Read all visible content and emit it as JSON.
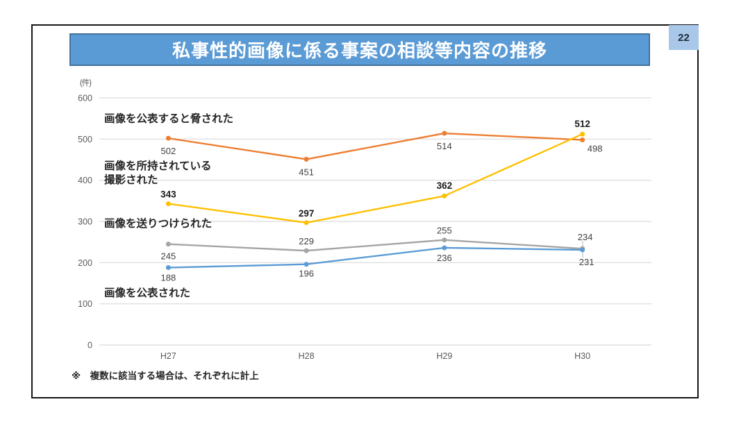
{
  "title": "私事性的画像に係る事案の相談等内容の推移",
  "page": {
    "number": "22"
  },
  "footnote": "※　複数に該当する場合は、それぞれに計上",
  "colors": {
    "title_bar": "#5B9BD5",
    "title_bar_border": "#41719C",
    "page_box": "#A9C7E8",
    "grid": "#D9D9D9",
    "tick_text": "#595959"
  },
  "chart_data": {
    "type": "line",
    "title": "私事性的画像に係る事案の相談等内容の推移",
    "ylabel_unit": "(件)",
    "categories": [
      "H27",
      "H28",
      "H29",
      "H30"
    ],
    "ylim": [
      0,
      600
    ],
    "ytick_step": 100,
    "grid": true,
    "legend": "inline-annotations",
    "series": [
      {
        "name": "画像を公表すると脅された",
        "color": "#ED7D31",
        "values": [
          502,
          451,
          514,
          498
        ],
        "bold_labels": false,
        "label_offsets": [
          [
            0,
            23
          ],
          [
            0,
            23
          ],
          [
            0,
            23
          ],
          [
            18,
            17
          ]
        ]
      },
      {
        "name": "画像を所持されている・撮影された",
        "color": "#FFC000",
        "values": [
          343,
          297,
          362,
          512
        ],
        "bold_labels": true,
        "label_offsets": [
          [
            0,
            -9
          ],
          [
            0,
            -9
          ],
          [
            0,
            -10
          ],
          [
            0,
            -10
          ]
        ]
      },
      {
        "name": "画像を送りつけられた",
        "color": "#A5A5A5",
        "values": [
          245,
          229,
          255,
          234
        ],
        "bold_labels": false,
        "label_offsets": [
          [
            0,
            22
          ],
          [
            0,
            -9
          ],
          [
            0,
            -9
          ],
          [
            4,
            -12
          ]
        ]
      },
      {
        "name": "画像を公表された",
        "color": "#5B9BD5",
        "values": [
          188,
          196,
          236,
          231
        ],
        "bold_labels": false,
        "label_offsets": [
          [
            0,
            19
          ],
          [
            0,
            18
          ],
          [
            0,
            19
          ],
          [
            6,
            22
          ]
        ]
      }
    ],
    "annotations": [
      {
        "text": "画像を公表すると脅された",
        "x": 150,
        "y": 176
      },
      {
        "text": "画像を所持されている",
        "x": 150,
        "y": 244
      },
      {
        "text": "撮影された",
        "x": 150,
        "y": 264
      },
      {
        "text": "画像を送りつけられた",
        "x": 150,
        "y": 327
      },
      {
        "text": "画像を公表された",
        "x": 150,
        "y": 427
      }
    ],
    "leaders": [
      {
        "x1": 839,
        "y1": 347,
        "x2": 839,
        "y2": 371,
        "color": "#BFBFBF"
      }
    ],
    "layout": {
      "plot_left": 143,
      "plot_right": 938,
      "plot_bottom": 497,
      "plot_top": 141,
      "ytick_x": 133,
      "xtick_y": 517,
      "marker_radius": 3.5,
      "line_width": 2.4
    }
  }
}
